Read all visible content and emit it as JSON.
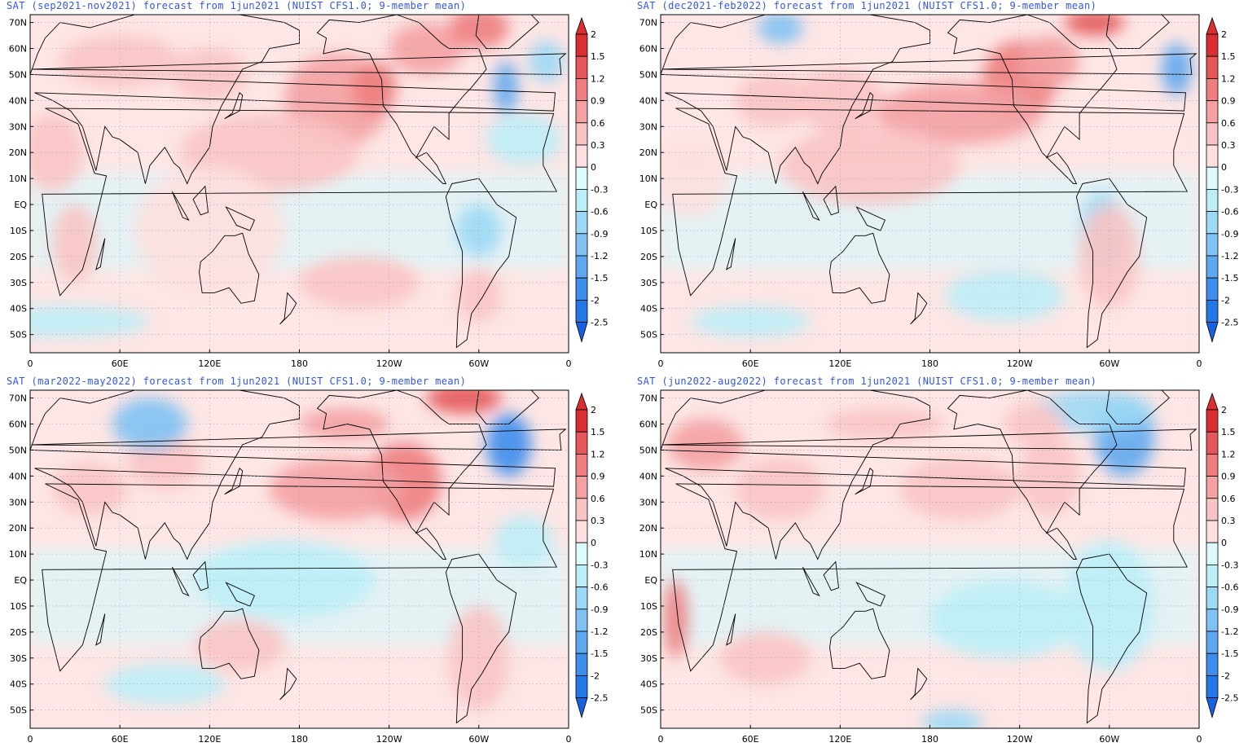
{
  "panels": [
    {
      "title": "SAT (sep2021-nov2021) forecast from 1jun2021 (NUIST CFS1.0; 9-member mean)"
    },
    {
      "title": "SAT (dec2021-feb2022) forecast from 1jun2021 (NUIST CFS1.0; 9-member mean)"
    },
    {
      "title": "SAT (mar2022-may2022) forecast from 1jun2021 (NUIST CFS1.0; 9-member mean)"
    },
    {
      "title": "SAT (jun2022-aug2022) forecast from 1jun2021 (NUIST CFS1.0; 9-member mean)"
    }
  ],
  "lat_labels": [
    "70N",
    "60N",
    "50N",
    "40N",
    "30N",
    "20N",
    "10N",
    "EQ",
    "10S",
    "20S",
    "30S",
    "40S",
    "50S"
  ],
  "lon_labels": [
    "0",
    "60E",
    "120E",
    "180",
    "120W",
    "60W",
    "0"
  ],
  "colorbar": {
    "labels": [
      "2",
      "1.5",
      "1.2",
      "0.9",
      "0.6",
      "0.3",
      "0",
      "-0.3",
      "-0.6",
      "-0.9",
      "-1.2",
      "-1.5",
      "-2",
      "-2.5"
    ],
    "colors": [
      "#d92f33",
      "#e5575a",
      "#ee7e80",
      "#f4a1a2",
      "#f9c4c4",
      "#fde0df",
      "#ddfafc",
      "#bdeef7",
      "#9cd9f5",
      "#7fc2f3",
      "#5fa8ef",
      "#3f8ded",
      "#2377e7",
      "#1961e0"
    ]
  },
  "colors": {
    "title": "#3355ee",
    "land_outline": "#000000",
    "grid": "#9aa6c8"
  }
}
